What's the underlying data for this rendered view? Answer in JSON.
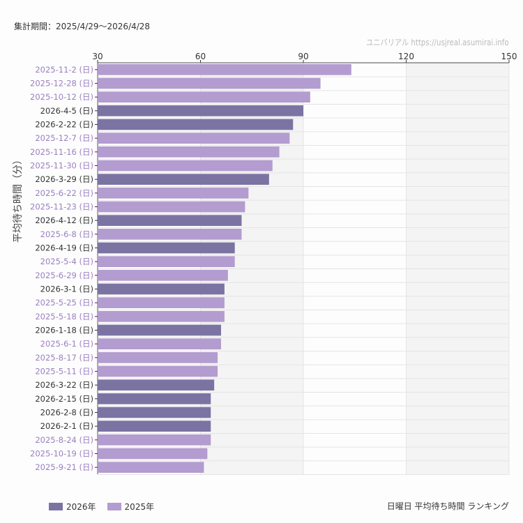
{
  "header": {
    "period": "集計期間：2025/4/29〜2026/4/28",
    "credit": "ユニバリアル  https://usjreal.asumirai.info"
  },
  "footer": {
    "title": "日曜日 平均待ち時間 ランキング"
  },
  "chart_data": {
    "type": "bar",
    "orientation": "horizontal",
    "title": "日曜日 平均待ち時間 ランキング",
    "ylabel": "平均待ち時間（分）",
    "xlim": [
      30,
      150
    ],
    "xticks": [
      30,
      60,
      90,
      120,
      150
    ],
    "grid": true,
    "legend_position": "bottom-left",
    "legend": [
      {
        "name": "2026年",
        "color": "#7b74a3"
      },
      {
        "name": "2025年",
        "color": "#b39ccf"
      }
    ],
    "label_colors": {
      "2026年": "#333333",
      "2025年": "#9b7fc0"
    },
    "categories": [
      "2025-11-2 (日)",
      "2025-12-28 (日)",
      "2025-10-12 (日)",
      "2026-4-5 (日)",
      "2026-2-22 (日)",
      "2025-12-7 (日)",
      "2025-11-16 (日)",
      "2025-11-30 (日)",
      "2026-3-29 (日)",
      "2025-6-22 (日)",
      "2025-11-23 (日)",
      "2026-4-12 (日)",
      "2025-6-8 (日)",
      "2026-4-19 (日)",
      "2025-5-4 (日)",
      "2025-6-29 (日)",
      "2026-3-1 (日)",
      "2025-5-25 (日)",
      "2025-5-18 (日)",
      "2026-1-18 (日)",
      "2025-6-1 (日)",
      "2025-8-17 (日)",
      "2025-5-11 (日)",
      "2026-3-22 (日)",
      "2026-2-15 (日)",
      "2026-2-8 (日)",
      "2026-2-1 (日)",
      "2025-8-24 (日)",
      "2025-10-19 (日)",
      "2025-9-21 (日)"
    ],
    "values": [
      104,
      95,
      92,
      90,
      87,
      86,
      83,
      81,
      80,
      74,
      73,
      72,
      72,
      70,
      70,
      68,
      67,
      67,
      67,
      66,
      66,
      65,
      65,
      64,
      63,
      63,
      63,
      63,
      62,
      61
    ],
    "groups": [
      "2025年",
      "2025年",
      "2025年",
      "2026年",
      "2026年",
      "2025年",
      "2025年",
      "2025年",
      "2026年",
      "2025年",
      "2025年",
      "2026年",
      "2025年",
      "2026年",
      "2025年",
      "2025年",
      "2026年",
      "2025年",
      "2025年",
      "2026年",
      "2025年",
      "2025年",
      "2025年",
      "2026年",
      "2026年",
      "2026年",
      "2026年",
      "2025年",
      "2025年",
      "2025年"
    ]
  }
}
